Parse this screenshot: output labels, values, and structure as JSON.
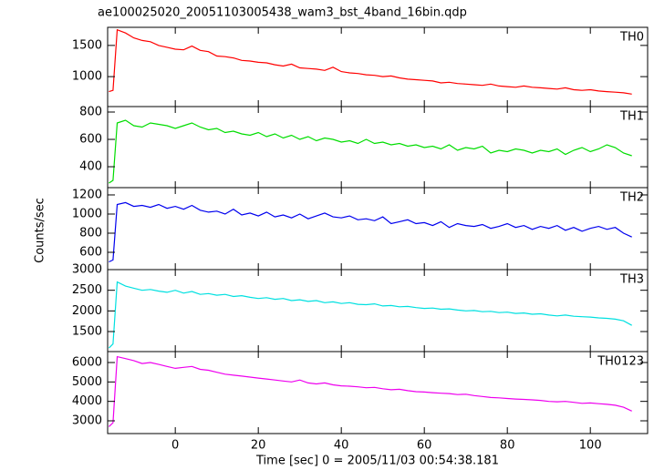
{
  "chart_data": {
    "type": "line",
    "title": "ae100025020_20051103005438_wam3_bst_4band_16bin.qdp",
    "xlabel": "Time [sec] 0 = 2005/11/03 00:54:38.181",
    "ylabel": "Counts/sec",
    "xlim": [
      -16.3,
      113.8
    ],
    "xticks": [
      0,
      20,
      40,
      60,
      80,
      100
    ],
    "x": [
      -16,
      -15,
      -14,
      -12,
      -10,
      -8,
      -6,
      -4,
      -2,
      0,
      2,
      4,
      6,
      8,
      10,
      12,
      14,
      16,
      18,
      20,
      22,
      24,
      26,
      28,
      30,
      32,
      34,
      36,
      38,
      40,
      42,
      44,
      46,
      48,
      50,
      52,
      54,
      56,
      58,
      60,
      62,
      64,
      66,
      68,
      70,
      72,
      74,
      76,
      78,
      80,
      82,
      84,
      86,
      88,
      90,
      92,
      94,
      96,
      98,
      100,
      102,
      104,
      106,
      108,
      110
    ],
    "series": [
      {
        "name": "TH0",
        "color": "#ff0000",
        "ylim": [
          520,
          1790
        ],
        "yticks": [
          1000,
          1500
        ],
        "values": [
          760,
          780,
          1750,
          1700,
          1620,
          1580,
          1560,
          1500,
          1470,
          1440,
          1430,
          1490,
          1420,
          1400,
          1330,
          1320,
          1300,
          1260,
          1250,
          1230,
          1220,
          1190,
          1170,
          1200,
          1140,
          1130,
          1120,
          1100,
          1150,
          1080,
          1060,
          1050,
          1030,
          1020,
          1000,
          1010,
          980,
          960,
          950,
          940,
          930,
          900,
          910,
          890,
          880,
          870,
          860,
          880,
          850,
          840,
          830,
          850,
          830,
          820,
          810,
          800,
          820,
          790,
          780,
          790,
          770,
          760,
          750,
          740,
          720
        ]
      },
      {
        "name": "TH1",
        "color": "#00dd00",
        "ylim": [
          247,
          840
        ],
        "yticks": [
          400,
          600,
          800
        ],
        "values": [
          280,
          300,
          720,
          740,
          700,
          690,
          720,
          710,
          700,
          680,
          700,
          720,
          690,
          670,
          680,
          650,
          660,
          640,
          630,
          650,
          620,
          640,
          610,
          630,
          600,
          620,
          590,
          610,
          600,
          580,
          590,
          570,
          600,
          570,
          580,
          560,
          570,
          550,
          560,
          540,
          550,
          530,
          560,
          520,
          540,
          530,
          550,
          500,
          520,
          510,
          530,
          520,
          500,
          520,
          510,
          530,
          490,
          520,
          540,
          510,
          530,
          560,
          540,
          500,
          480
        ]
      },
      {
        "name": "TH2",
        "color": "#0000ee",
        "ylim": [
          419,
          1276
        ],
        "yticks": [
          600,
          800,
          1000,
          1200
        ],
        "values": [
          500,
          520,
          1100,
          1120,
          1080,
          1090,
          1070,
          1100,
          1060,
          1080,
          1050,
          1090,
          1040,
          1020,
          1030,
          1000,
          1050,
          990,
          1010,
          980,
          1020,
          970,
          990,
          960,
          1000,
          950,
          980,
          1010,
          970,
          960,
          980,
          940,
          950,
          930,
          970,
          900,
          920,
          940,
          900,
          910,
          880,
          920,
          860,
          900,
          880,
          870,
          890,
          850,
          870,
          900,
          860,
          880,
          840,
          870,
          850,
          880,
          830,
          860,
          820,
          850,
          870,
          840,
          860,
          800,
          760
        ]
      },
      {
        "name": "TH3",
        "color": "#00e0e0",
        "ylim": [
          1015,
          3000
        ],
        "yticks": [
          1500,
          2000,
          2500,
          3000
        ],
        "values": [
          1100,
          1200,
          2700,
          2600,
          2550,
          2500,
          2520,
          2480,
          2450,
          2500,
          2430,
          2470,
          2400,
          2420,
          2380,
          2400,
          2350,
          2370,
          2330,
          2300,
          2320,
          2280,
          2300,
          2250,
          2270,
          2230,
          2250,
          2200,
          2220,
          2180,
          2200,
          2160,
          2150,
          2170,
          2120,
          2130,
          2100,
          2110,
          2080,
          2060,
          2070,
          2040,
          2050,
          2020,
          2000,
          2010,
          1980,
          1990,
          1960,
          1970,
          1940,
          1950,
          1920,
          1930,
          1900,
          1880,
          1900,
          1870,
          1860,
          1850,
          1830,
          1820,
          1800,
          1760,
          1650
        ]
      },
      {
        "name": "TH0123",
        "color": "#ee00ee",
        "ylim": [
          2343,
          6563
        ],
        "yticks": [
          3000,
          4000,
          5000,
          6000
        ],
        "values": [
          2700,
          2900,
          6300,
          6200,
          6100,
          5950,
          6000,
          5900,
          5800,
          5700,
          5750,
          5800,
          5650,
          5600,
          5500,
          5400,
          5350,
          5300,
          5250,
          5200,
          5150,
          5100,
          5050,
          5000,
          5100,
          4950,
          4900,
          4950,
          4850,
          4800,
          4780,
          4750,
          4700,
          4720,
          4650,
          4600,
          4620,
          4550,
          4500,
          4480,
          4450,
          4420,
          4400,
          4350,
          4370,
          4300,
          4250,
          4200,
          4180,
          4150,
          4120,
          4100,
          4080,
          4050,
          4000,
          3980,
          4000,
          3950,
          3900,
          3920,
          3880,
          3850,
          3800,
          3700,
          3500
        ]
      }
    ]
  }
}
